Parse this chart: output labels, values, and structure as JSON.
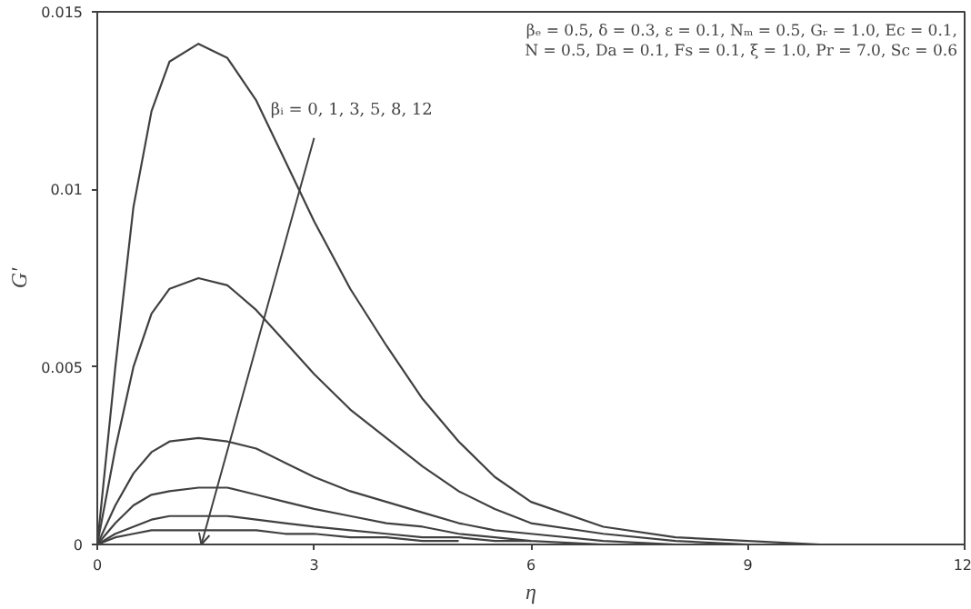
{
  "chart_data": {
    "type": "line",
    "xlabel": "η",
    "ylabel": "G'",
    "x": [
      0,
      0.25,
      0.5,
      0.75,
      1,
      1.4,
      1.8,
      2.2,
      2.6,
      3,
      3.5,
      4,
      4.5,
      5,
      5.5,
      6,
      7,
      8,
      9,
      10,
      11,
      12
    ],
    "series": [
      {
        "color": "#404040",
        "values": [
          0,
          0.005,
          0.0095,
          0.0122,
          0.0136,
          0.0141,
          0.0137,
          0.0125,
          0.0108,
          0.0091,
          0.0072,
          0.0056,
          0.0041,
          0.0029,
          0.0019,
          0.0012,
          0.0005,
          0.0002,
          0.0001,
          0,
          0,
          0
        ]
      },
      {
        "color": "#404040",
        "values": [
          0,
          0.0027,
          0.005,
          0.0065,
          0.0072,
          0.0075,
          0.0073,
          0.0066,
          0.0057,
          0.0048,
          0.0038,
          0.003,
          0.0022,
          0.0015,
          0.001,
          0.0006,
          0.0003,
          0.0001,
          0,
          null,
          null,
          null
        ]
      },
      {
        "color": "#404040",
        "values": [
          0,
          0.0011,
          0.002,
          0.0026,
          0.0029,
          0.003,
          0.0029,
          0.0027,
          0.0023,
          0.0019,
          0.0015,
          0.0012,
          0.0009,
          0.0006,
          0.0004,
          0.0003,
          0.0001,
          0,
          null,
          null,
          null,
          null
        ]
      },
      {
        "color": "#404040",
        "values": [
          0,
          0.0006,
          0.0011,
          0.0014,
          0.0015,
          0.0016,
          0.0016,
          0.0014,
          0.0012,
          0.001,
          0.0008,
          0.0006,
          0.0005,
          0.0003,
          0.0002,
          0.0001,
          0,
          null,
          null,
          null,
          null,
          null
        ]
      },
      {
        "color": "#404040",
        "values": [
          0,
          0.0003,
          0.0005,
          0.0007,
          0.0008,
          0.0008,
          0.0008,
          0.0007,
          0.0006,
          0.0005,
          0.0004,
          0.0003,
          0.0002,
          0.0002,
          0.0001,
          0.0001,
          null,
          null,
          null,
          null,
          null,
          null
        ]
      },
      {
        "color": "#404040",
        "values": [
          0,
          0.0002,
          0.0003,
          0.0004,
          0.0004,
          0.0004,
          0.0004,
          0.0004,
          0.0003,
          0.0003,
          0.0002,
          0.0002,
          0.0001,
          0.0001,
          null,
          null,
          null,
          null,
          null,
          null,
          null,
          null
        ]
      }
    ],
    "annotations": [
      {
        "text": "βᵢ = 0, 1, 3, 5, 8, 12",
        "x": 2.4,
        "y": 0.0122
      },
      "βₑ = 0.5, δ = 0.3, ε = 0.1, Nₘ = 0.5, Gᵣ = 1.0, Ec = 0.1,",
      "N = 0.5, Da = 0.1, Fs = 0.1, ξ = 1.0, Pr = 7.0, Sc = 0.6"
    ],
    "xlim": [
      0,
      12
    ],
    "ylim": [
      0,
      0.015
    ],
    "xticks": [
      0,
      3,
      6,
      9,
      12
    ],
    "yticks": [
      0,
      0.005,
      0.01,
      0.015
    ],
    "line_style": "solid"
  }
}
